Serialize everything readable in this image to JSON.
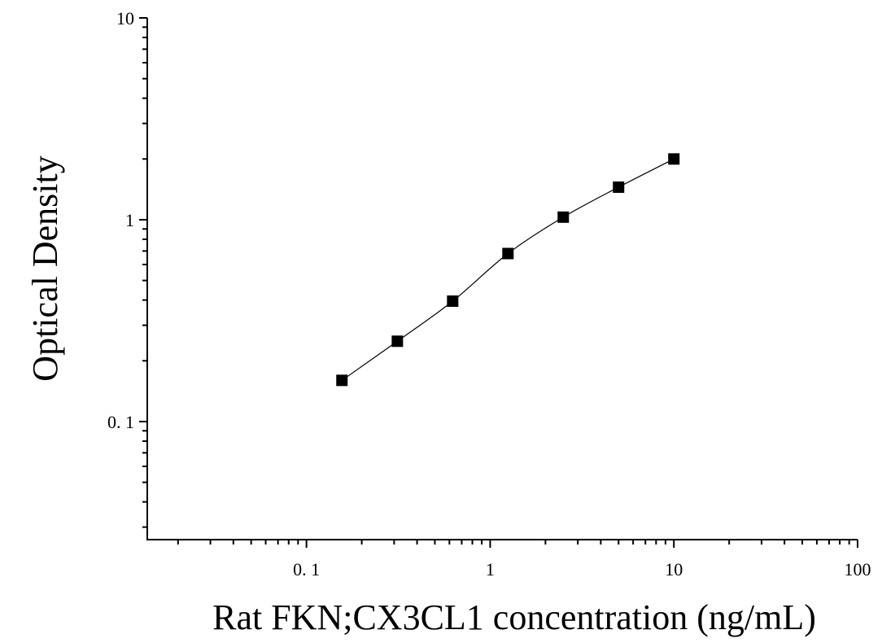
{
  "chart_data": {
    "type": "scatter",
    "title": "",
    "xlabel": "Rat FKN;CX3CL1 concentration (ng/mL)",
    "ylabel": "Optical Density",
    "x_scale": "log",
    "y_scale": "log",
    "xlim": [
      0.0136,
      100
    ],
    "ylim": [
      0.026,
      10
    ],
    "grid": false,
    "legend": "none",
    "x_ticks": [
      {
        "value": 0.1,
        "label": "0. 1"
      },
      {
        "value": 1,
        "label": "1"
      },
      {
        "value": 10,
        "label": "10"
      },
      {
        "value": 100,
        "label": "100"
      }
    ],
    "y_ticks": [
      {
        "value": 0.1,
        "label": "0. 1"
      },
      {
        "value": 1,
        "label": "1"
      },
      {
        "value": 10,
        "label": "10"
      }
    ],
    "series": [
      {
        "x": [
          0.156,
          0.3125,
          0.625,
          1.25,
          2.5,
          5,
          10
        ],
        "y": [
          0.16,
          0.25,
          0.395,
          0.68,
          1.03,
          1.45,
          2.0
        ],
        "marker": "square",
        "color": "#000000",
        "fit_line": true
      }
    ]
  }
}
